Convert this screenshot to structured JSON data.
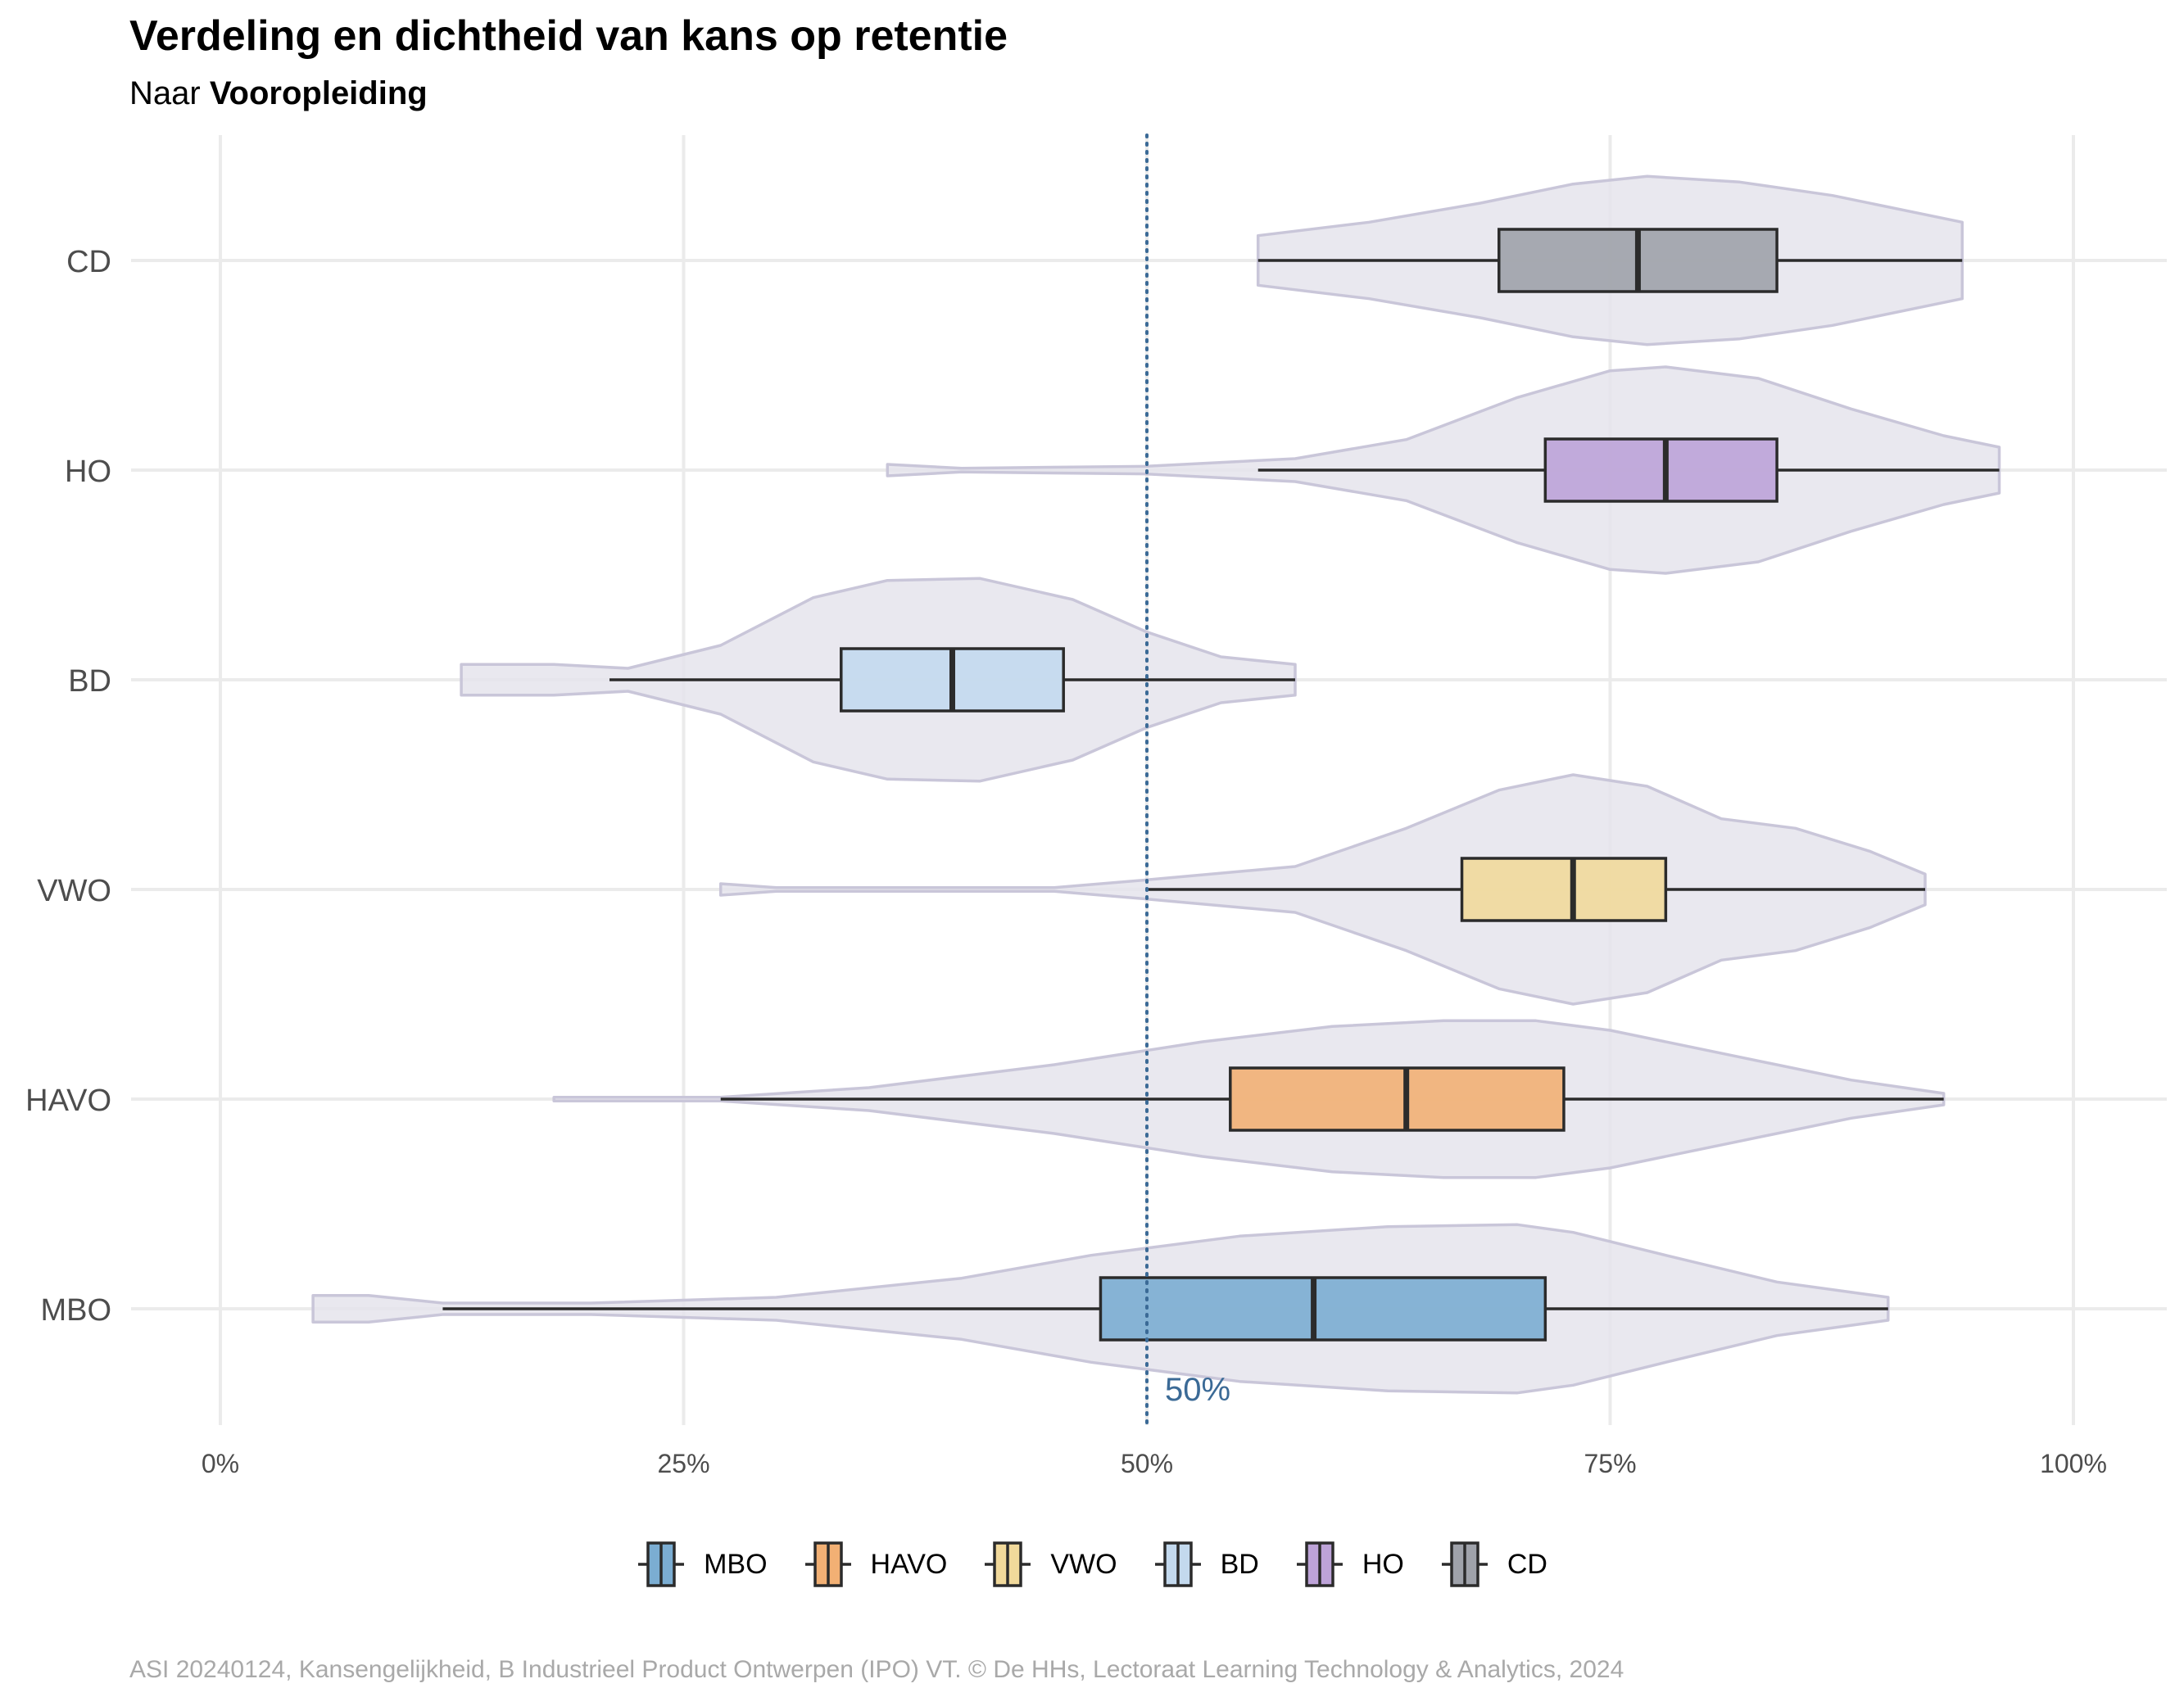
{
  "title": "Verdeling en dichtheid van kans op retentie",
  "subtitle_prefix": "Naar ",
  "subtitle_bold": "Vooropleiding",
  "caption": "ASI 20240124, Kansengelijkheid, B Industrieel Product Ontwerpen (IPO) VT. © De HHs, Lectoraat Learning Technology & Analytics, 2024",
  "chart_data": {
    "type": "violin-boxplot",
    "orientation": "horizontal",
    "x_ticks": [
      {
        "value": 0,
        "label": "0%"
      },
      {
        "value": 25,
        "label": "25%"
      },
      {
        "value": 50,
        "label": "50%"
      },
      {
        "value": 75,
        "label": "75%"
      },
      {
        "value": 100,
        "label": "100%"
      }
    ],
    "xlim": [
      -5,
      105
    ],
    "reference_line": {
      "value": 50,
      "label": "50%",
      "color": "#3b6a96",
      "style": "dotted"
    },
    "violin_color": "#e5e4ec",
    "violin_stroke": "#c9c6d9",
    "groups": [
      {
        "name": "MBO",
        "color": "#7badd2",
        "whisker_min": 12,
        "q1": 47.5,
        "median": 59,
        "q3": 71.5,
        "whisker_max": 90,
        "violin_min": 5,
        "violin_max": 90,
        "density": [
          [
            5,
            0.07
          ],
          [
            8,
            0.07
          ],
          [
            12,
            0.03
          ],
          [
            20,
            0.03
          ],
          [
            30,
            0.06
          ],
          [
            40,
            0.16
          ],
          [
            47,
            0.28
          ],
          [
            55,
            0.38
          ],
          [
            63,
            0.43
          ],
          [
            70,
            0.44
          ],
          [
            73,
            0.4
          ],
          [
            78,
            0.28
          ],
          [
            84,
            0.14
          ],
          [
            90,
            0.06
          ]
        ]
      },
      {
        "name": "HAVO",
        "color": "#f2b074",
        "whisker_min": 27,
        "q1": 54.5,
        "median": 64,
        "q3": 72.5,
        "whisker_max": 93,
        "violin_min": 18,
        "violin_max": 93,
        "density": [
          [
            18,
            0.01
          ],
          [
            27,
            0.01
          ],
          [
            35,
            0.06
          ],
          [
            45,
            0.18
          ],
          [
            53,
            0.3
          ],
          [
            60,
            0.38
          ],
          [
            66,
            0.41
          ],
          [
            71,
            0.41
          ],
          [
            75,
            0.36
          ],
          [
            82,
            0.22
          ],
          [
            88,
            0.1
          ],
          [
            93,
            0.03
          ]
        ]
      },
      {
        "name": "VWO",
        "color": "#f1d99b",
        "whisker_min": 50,
        "q1": 67,
        "median": 73,
        "q3": 78,
        "whisker_max": 92,
        "violin_min": 27,
        "violin_max": 92,
        "density": [
          [
            27,
            0.03
          ],
          [
            30,
            0.01
          ],
          [
            45,
            0.01
          ],
          [
            50,
            0.05
          ],
          [
            58,
            0.12
          ],
          [
            64,
            0.32
          ],
          [
            69,
            0.52
          ],
          [
            73,
            0.6
          ],
          [
            77,
            0.54
          ],
          [
            81,
            0.37
          ],
          [
            85,
            0.32
          ],
          [
            89,
            0.2
          ],
          [
            92,
            0.08
          ]
        ]
      },
      {
        "name": "BD",
        "color": "#c3d9ee",
        "whisker_min": 21,
        "q1": 33.5,
        "median": 39.5,
        "q3": 45.5,
        "whisker_max": 58,
        "violin_min": 13,
        "violin_max": 58,
        "density": [
          [
            13,
            0.08
          ],
          [
            18,
            0.08
          ],
          [
            22,
            0.06
          ],
          [
            27,
            0.18
          ],
          [
            32,
            0.43
          ],
          [
            36,
            0.52
          ],
          [
            41,
            0.53
          ],
          [
            46,
            0.42
          ],
          [
            50,
            0.25
          ],
          [
            54,
            0.12
          ],
          [
            58,
            0.08
          ]
        ]
      },
      {
        "name": "HO",
        "color": "#bda3d8",
        "whisker_min": 56,
        "q1": 71.5,
        "median": 78,
        "q3": 84,
        "whisker_max": 96,
        "violin_min": 36,
        "violin_max": 96,
        "density": [
          [
            36,
            0.03
          ],
          [
            40,
            0.01
          ],
          [
            50,
            0.02
          ],
          [
            58,
            0.06
          ],
          [
            64,
            0.16
          ],
          [
            70,
            0.38
          ],
          [
            75,
            0.52
          ],
          [
            78,
            0.54
          ],
          [
            83,
            0.48
          ],
          [
            88,
            0.32
          ],
          [
            93,
            0.18
          ],
          [
            96,
            0.12
          ]
        ]
      },
      {
        "name": "CD",
        "color": "#9fa2aa",
        "whisker_min": 56,
        "q1": 69,
        "median": 76.5,
        "q3": 84,
        "whisker_max": 94,
        "violin_min": 56,
        "violin_max": 94,
        "density": [
          [
            56,
            0.13
          ],
          [
            62,
            0.2
          ],
          [
            68,
            0.3
          ],
          [
            73,
            0.4
          ],
          [
            77,
            0.44
          ],
          [
            82,
            0.41
          ],
          [
            87,
            0.34
          ],
          [
            94,
            0.2
          ]
        ]
      }
    ],
    "y_order_bottom_to_top": [
      "MBO",
      "HAVO",
      "VWO",
      "BD",
      "HO",
      "CD"
    ],
    "legend": {
      "position": "bottom",
      "entries": [
        "MBO",
        "HAVO",
        "VWO",
        "BD",
        "HO",
        "CD"
      ]
    }
  }
}
